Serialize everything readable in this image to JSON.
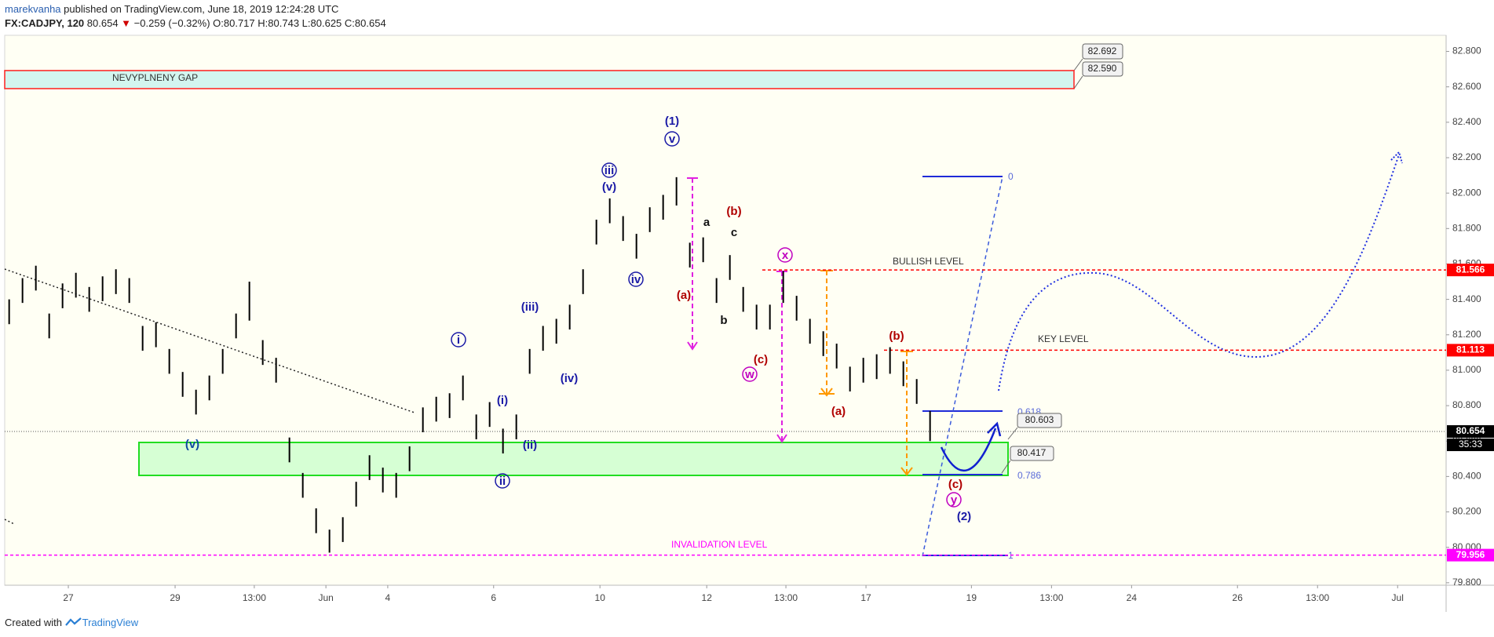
{
  "header": {
    "author": "marekvanha",
    "published": "published on TradingView.com, June 18, 2019 12:24:28 UTC",
    "symbol": "FX:CADJPY, 120",
    "last": "80.654",
    "change": "−0.259 (−0.32%)",
    "ohlc": [
      "O:80.717",
      "H:80.743",
      "L:80.625",
      "C:80.654"
    ]
  },
  "footer": {
    "text": "Created with",
    "brand": "TradingView"
  },
  "chart_data": {
    "type": "ohlc",
    "color": "#000000",
    "x": [
      1,
      4,
      7,
      10,
      13,
      16,
      19,
      22,
      25,
      28,
      31,
      34,
      37,
      40,
      43,
      46,
      49,
      52,
      55,
      58,
      61,
      64,
      67,
      70,
      73,
      76,
      79,
      82,
      85,
      88,
      91,
      94,
      97,
      100,
      103,
      106,
      109,
      112,
      115,
      118,
      121,
      124,
      127,
      130,
      133,
      136,
      139,
      142,
      145,
      148,
      151,
      154,
      157,
      160,
      163,
      166,
      169,
      172,
      175,
      178,
      181,
      184,
      187,
      190,
      193,
      196,
      199,
      202,
      205,
      208
    ],
    "high": [
      81.4,
      81.52,
      81.59,
      81.32,
      81.49,
      81.55,
      81.47,
      81.53,
      81.57,
      81.52,
      81.25,
      81.27,
      81.12,
      80.99,
      80.89,
      80.97,
      81.12,
      81.32,
      81.5,
      81.17,
      81.07,
      80.62,
      80.42,
      80.22,
      80.1,
      80.17,
      80.37,
      80.52,
      80.45,
      80.42,
      80.57,
      80.79,
      80.85,
      80.87,
      80.97,
      80.75,
      80.82,
      80.67,
      80.75,
      81.12,
      81.25,
      81.29,
      81.37,
      81.57,
      81.85,
      81.97,
      81.87,
      81.77,
      81.92,
      81.99,
      82.09,
      81.72,
      81.75,
      81.52,
      81.65,
      81.47,
      81.37,
      81.37,
      81.56,
      81.42,
      81.29,
      81.22,
      81.15,
      81.02,
      81.07,
      81.09,
      81.13,
      81.05,
      80.95,
      80.77
    ],
    "low": [
      81.26,
      81.38,
      81.45,
      81.18,
      81.35,
      81.41,
      81.33,
      81.39,
      81.43,
      81.38,
      81.11,
      81.13,
      80.98,
      80.85,
      80.75,
      80.83,
      80.98,
      81.18,
      81.28,
      81.03,
      80.93,
      80.48,
      80.28,
      80.08,
      79.97,
      80.03,
      80.23,
      80.38,
      80.31,
      80.28,
      80.43,
      80.65,
      80.71,
      80.73,
      80.83,
      80.61,
      80.68,
      80.53,
      80.61,
      80.98,
      81.11,
      81.15,
      81.23,
      81.43,
      81.71,
      81.83,
      81.73,
      81.63,
      81.78,
      81.85,
      81.93,
      81.58,
      81.61,
      81.38,
      81.51,
      81.33,
      81.23,
      81.23,
      81.38,
      81.28,
      81.15,
      81.08,
      81.01,
      80.88,
      80.93,
      80.95,
      80.98,
      80.91,
      80.81,
      80.6
    ],
    "xlim": [
      0,
      324
    ],
    "xticks": [
      {
        "value": 14.3,
        "label": "27"
      },
      {
        "value": 38.3,
        "label": "29"
      },
      {
        "value": 56.1,
        "label": "13:00"
      },
      {
        "value": 72.2,
        "label": "Jun"
      },
      {
        "value": 86.1,
        "label": "4"
      },
      {
        "value": 109.9,
        "label": "6"
      },
      {
        "value": 133.8,
        "label": "10"
      },
      {
        "value": 157.8,
        "label": "12"
      },
      {
        "value": 175.6,
        "label": "13:00"
      },
      {
        "value": 193.6,
        "label": "17"
      },
      {
        "value": 217.3,
        "label": "19"
      },
      {
        "value": 235.3,
        "label": "13:00"
      },
      {
        "value": 253.3,
        "label": "24"
      },
      {
        "value": 277.1,
        "label": "26"
      },
      {
        "value": 295.1,
        "label": "13:00"
      },
      {
        "value": 313.1,
        "label": "Jul"
      }
    ],
    "ylim": [
      79.786,
      82.891
    ],
    "yticks": [
      {
        "value": 79.8,
        "label": "79.800"
      },
      {
        "value": 80.0,
        "label": "80.000"
      },
      {
        "value": 80.2,
        "label": "80.200"
      },
      {
        "value": 80.4,
        "label": "80.400"
      },
      {
        "value": 80.6,
        "label": "80.600"
      },
      {
        "value": 80.8,
        "label": "80.800"
      },
      {
        "value": 81.0,
        "label": "81.000"
      },
      {
        "value": 81.2,
        "label": "81.200"
      },
      {
        "value": 81.4,
        "label": "81.400"
      },
      {
        "value": 81.6,
        "label": "81.600"
      },
      {
        "value": 81.8,
        "label": "81.800"
      },
      {
        "value": 82.0,
        "label": "82.000"
      },
      {
        "value": 82.2,
        "label": "82.200"
      },
      {
        "value": 82.4,
        "label": "82.400"
      },
      {
        "value": 82.6,
        "label": "82.600"
      },
      {
        "value": 82.8,
        "label": "82.800"
      }
    ],
    "gap": {
      "name": "NEVYPLNENY GAP",
      "top": {
        "value": 82.692,
        "label": "82.692"
      },
      "bottom": {
        "value": 82.59,
        "label": "82.590"
      }
    },
    "levels": [
      {
        "name": "BULLISH LEVEL",
        "value": 81.566,
        "label": "81.566",
        "color": "#ff0000"
      },
      {
        "name": "KEY LEVEL",
        "value": 81.113,
        "label": "81.113",
        "color": "#ff0000"
      },
      {
        "name": "INVALIDATION LEVEL",
        "value": 79.956,
        "label": "79.956",
        "color": "#ff00ff"
      }
    ],
    "last": {
      "value": 80.654,
      "label": "80.654",
      "color": "#000000"
    },
    "countdown": "35:33",
    "fib": [
      0,
      0.618,
      0.786,
      1
    ],
    "callouts": [
      80.603,
      80.417
    ],
    "annotations": [
      "(1)",
      "v",
      "iii",
      "(v)",
      "iv",
      "(iii)",
      "(iv)",
      "i",
      "(i)",
      "(ii)",
      "ii",
      "(v)",
      "a",
      "b",
      "c",
      "(b)",
      "(a)",
      "(c)",
      "x",
      "w",
      "(b)",
      "(a)",
      "(c)",
      "y",
      "(2)"
    ]
  }
}
